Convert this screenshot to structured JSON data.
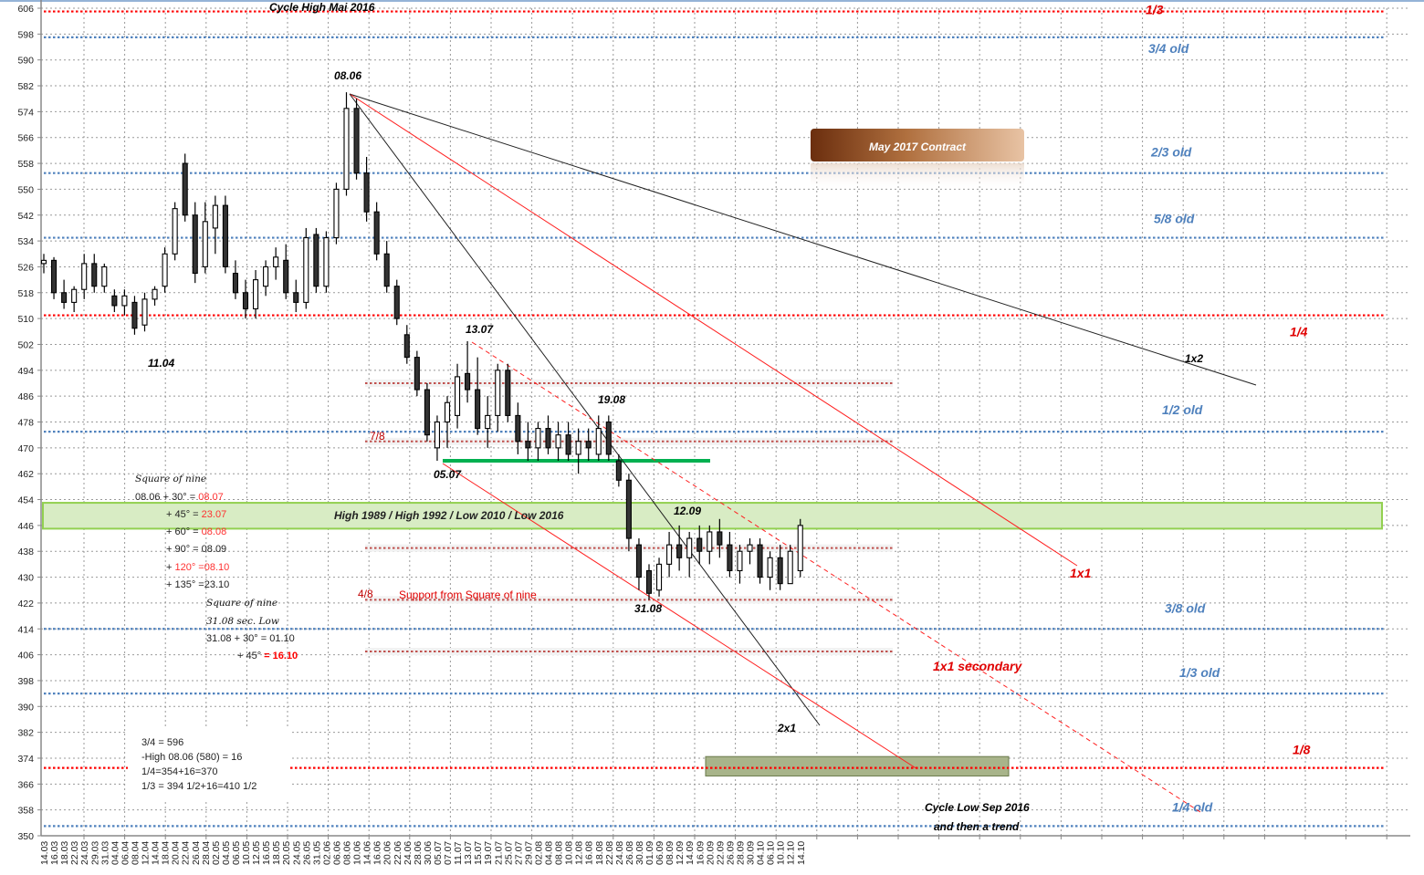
{
  "chart_data": {
    "type": "candlestick",
    "title": "Cycle High Mai 2016",
    "xlabel": "",
    "ylabel": "",
    "ylim": [
      350,
      606
    ],
    "y_ticks": [
      606,
      598,
      590,
      582,
      574,
      566,
      558,
      550,
      542,
      534,
      526,
      518,
      510,
      502,
      494,
      486,
      478,
      470,
      462,
      454,
      446,
      438,
      430,
      422,
      414,
      406,
      398,
      390,
      382,
      374,
      366,
      358,
      350
    ],
    "grid": true,
    "categories": [
      "14.03",
      "16.03",
      "18.03",
      "22.03",
      "24.03",
      "29.03",
      "31.03",
      "04.04",
      "06.04",
      "08.04",
      "12.04",
      "14.04",
      "18.04",
      "20.04",
      "22.04",
      "26.04",
      "28.04",
      "02.05",
      "04.05",
      "06.05",
      "10.05",
      "12.05",
      "16.05",
      "18.05",
      "20.05",
      "24.05",
      "26.05",
      "31.05",
      "02.06",
      "06.06",
      "08.06",
      "10.06",
      "14.06",
      "16.06",
      "20.06",
      "22.06",
      "24.06",
      "28.06",
      "30.06",
      "05.07",
      "07.07",
      "11.07",
      "13.07",
      "15.07",
      "19.07",
      "21.07",
      "25.07",
      "27.07",
      "29.07",
      "02.08",
      "04.08",
      "08.08",
      "10.08",
      "12.08",
      "16.08",
      "18.08",
      "22.08",
      "24.08",
      "26.08",
      "30.08",
      "01.09",
      "06.09",
      "08.09",
      "12.09",
      "14.09",
      "16.09",
      "20.09",
      "22.09",
      "26.09",
      "28.09",
      "30.09",
      "04.10",
      "06.10",
      "10.10",
      "12.10",
      "14.10"
    ],
    "ohlc": [
      [
        527,
        530,
        524,
        528
      ],
      [
        528,
        529,
        516,
        518
      ],
      [
        518,
        522,
        513,
        515
      ],
      [
        515,
        520,
        512,
        519
      ],
      [
        519,
        530,
        516,
        527
      ],
      [
        527,
        530,
        518,
        520
      ],
      [
        520,
        527,
        518,
        526
      ],
      [
        517,
        519,
        512,
        514
      ],
      [
        514,
        519,
        511,
        517
      ],
      [
        515,
        517,
        505,
        507
      ],
      [
        508,
        518,
        506,
        516
      ],
      [
        516,
        520,
        514,
        519
      ],
      [
        520,
        532,
        518,
        530
      ],
      [
        530,
        546,
        528,
        544
      ],
      [
        558,
        561,
        540,
        542
      ],
      [
        542,
        546,
        521,
        524
      ],
      [
        526,
        546,
        524,
        540
      ],
      [
        538,
        548,
        530,
        545
      ],
      [
        545,
        548,
        524,
        526
      ],
      [
        524,
        528,
        516,
        518
      ],
      [
        518,
        522,
        510,
        513
      ],
      [
        513,
        525,
        510,
        522
      ],
      [
        520,
        528,
        517,
        526
      ],
      [
        526,
        532,
        522,
        529
      ],
      [
        528,
        533,
        516,
        518
      ],
      [
        518,
        522,
        512,
        515
      ],
      [
        515,
        538,
        513,
        535
      ],
      [
        536,
        538,
        518,
        520
      ],
      [
        520,
        537,
        518,
        535
      ],
      [
        535,
        552,
        533,
        550
      ],
      [
        550,
        580,
        548,
        575
      ],
      [
        575,
        578,
        553,
        555
      ],
      [
        555,
        560,
        540,
        543
      ],
      [
        543,
        546,
        528,
        530
      ],
      [
        530,
        534,
        518,
        520
      ],
      [
        520,
        522,
        508,
        510
      ],
      [
        505,
        508,
        496,
        498
      ],
      [
        498,
        500,
        486,
        488
      ],
      [
        488,
        490,
        472,
        474
      ],
      [
        470,
        480,
        466,
        478
      ],
      [
        478,
        486,
        470,
        484
      ],
      [
        480,
        496,
        476,
        492
      ],
      [
        493,
        503,
        484,
        488
      ],
      [
        488,
        498,
        474,
        476
      ],
      [
        476,
        486,
        470,
        480
      ],
      [
        480,
        496,
        475,
        494
      ],
      [
        494,
        496,
        478,
        480
      ],
      [
        480,
        484,
        468,
        472
      ],
      [
        472,
        478,
        466,
        470
      ],
      [
        470,
        478,
        466,
        476
      ],
      [
        476,
        480,
        468,
        470
      ],
      [
        470,
        478,
        466,
        474
      ],
      [
        474,
        478,
        466,
        468
      ],
      [
        468,
        476,
        462,
        472
      ],
      [
        472,
        476,
        466,
        470
      ],
      [
        468,
        480,
        466,
        476
      ],
      [
        478,
        480,
        466,
        468
      ],
      [
        466,
        468,
        458,
        460
      ],
      [
        460,
        462,
        438,
        442
      ],
      [
        440,
        442,
        426,
        430
      ],
      [
        432,
        434,
        423,
        425
      ],
      [
        426,
        436,
        424,
        434
      ],
      [
        434,
        444,
        430,
        440
      ],
      [
        440,
        446,
        432,
        436
      ],
      [
        436,
        444,
        430,
        442
      ],
      [
        442,
        446,
        434,
        438
      ],
      [
        438,
        446,
        434,
        444
      ],
      [
        444,
        448,
        436,
        440
      ],
      [
        440,
        444,
        430,
        432
      ],
      [
        432,
        440,
        428,
        438
      ],
      [
        438,
        442,
        434,
        440
      ],
      [
        440,
        442,
        428,
        430
      ],
      [
        430,
        438,
        426,
        436
      ],
      [
        436,
        440,
        426,
        428
      ],
      [
        428,
        440,
        428,
        438
      ],
      [
        432,
        448,
        430,
        446
      ]
    ],
    "levels": [
      {
        "price": 605,
        "label": "1/3",
        "color": "#ff0000",
        "style": "major"
      },
      {
        "price": 597,
        "label": "3/4 old",
        "color": "#4f81bd",
        "style": "major"
      },
      {
        "price": 555,
        "label": "2/3 old",
        "color": "#4f81bd",
        "style": "major"
      },
      {
        "price": 535,
        "label": "5/8 old",
        "color": "#4f81bd",
        "style": "major"
      },
      {
        "price": 511,
        "label": "1/4",
        "color": "#ff0000",
        "style": "major"
      },
      {
        "price": 475,
        "label": "1/2 old",
        "color": "#4f81bd",
        "style": "major"
      },
      {
        "price": 414,
        "label": "3/8 old",
        "color": "#4f81bd",
        "style": "major"
      },
      {
        "price": 394,
        "label": "1/3 old",
        "color": "#4f81bd",
        "style": "major"
      },
      {
        "price": 371,
        "label": "1/8",
        "color": "#ff0000",
        "style": "major"
      },
      {
        "price": 353,
        "label": "1/4 old",
        "color": "#4f81bd",
        "style": "major"
      },
      {
        "price": 490,
        "label": "",
        "color": "#c0504d",
        "style": "minor"
      },
      {
        "price": 472,
        "label": "7/8",
        "color": "#c0504d",
        "style": "minor"
      },
      {
        "price": 439,
        "label": "",
        "color": "#c0504d",
        "style": "minor"
      },
      {
        "price": 423,
        "label": "4/8",
        "color": "#c0504d",
        "style": "minor"
      },
      {
        "price": 407,
        "label": "",
        "color": "#c0504d",
        "style": "minor"
      }
    ],
    "support_zone": {
      "low": 445,
      "high": 453,
      "label": "High 1989 / High 1992 / Low 2010 / Low 2016",
      "color": "#92d050"
    },
    "support_line": {
      "price": 466,
      "color": "#00b050"
    },
    "target_zone": {
      "low": 368.5,
      "high": 374.5,
      "color": "#9bbb59"
    },
    "pivot_labels": [
      "08.06",
      "11.04",
      "13.07",
      "05.07",
      "19.08",
      "12.09",
      "31.08"
    ],
    "trend_lines": [
      "1x2",
      "1x1",
      "2x1",
      "1x1 secondary"
    ],
    "annotations": {
      "support_square": "Support from Square of nine",
      "cycle_low_1": "Cycle Low Sep 2016",
      "cycle_low_2": "and then a trend"
    }
  },
  "contract_badge": "May 2017 Contract",
  "square_of_nine": {
    "title1": "Square of nine",
    "r1a": "08.06 + 30°  = ",
    "r1b": "08.07",
    "r2a": "+ 45°  = ",
    "r2b": "23.07",
    "r3a": "+ 60°  = ",
    "r3b": "08.08",
    "r4a": "+ 90°  = 08.09",
    "r5a": "+ ",
    "r5b": "120° =08.10",
    "r6a": "+ 135°  =23.10",
    "title2": "Square of nine",
    "sub2": "31.08 sec. Low",
    "r7a": "31.08 + 30°  = 01.10",
    "r8a": "+ 45° ",
    "r8b": "= 16.10"
  },
  "calc_box": [
    "3/4 =    596",
    "-High 08.06 (580) = 16",
    "1/4=354+16=370",
    "1/3 = 394 1/2+16=410 1/2"
  ],
  "colors": {
    "bull": "#ffffff",
    "bear": "#333333",
    "grid": "#888888"
  }
}
